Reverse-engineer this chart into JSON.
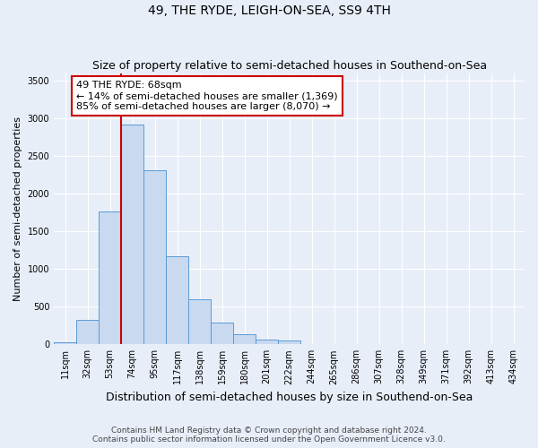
{
  "title": "49, THE RYDE, LEIGH-ON-SEA, SS9 4TH",
  "subtitle": "Size of property relative to semi-detached houses in Southend-on-Sea",
  "xlabel": "Distribution of semi-detached houses by size in Southend-on-Sea",
  "ylabel": "Number of semi-detached properties",
  "bin_labels": [
    "11sqm",
    "32sqm",
    "53sqm",
    "74sqm",
    "95sqm",
    "117sqm",
    "138sqm",
    "159sqm",
    "180sqm",
    "201sqm",
    "222sqm",
    "244sqm",
    "265sqm",
    "286sqm",
    "307sqm",
    "328sqm",
    "349sqm",
    "371sqm",
    "392sqm",
    "413sqm",
    "434sqm"
  ],
  "bar_heights": [
    30,
    320,
    1770,
    2920,
    2310,
    1170,
    600,
    290,
    140,
    60,
    50,
    0,
    0,
    0,
    0,
    0,
    0,
    0,
    0,
    0,
    0
  ],
  "bar_color": "#c9d9f0",
  "bar_edge_color": "#5b9bd5",
  "vline_color": "#cc0000",
  "annotation_text": "49 THE RYDE: 68sqm\n← 14% of semi-detached houses are smaller (1,369)\n85% of semi-detached houses are larger (8,070) →",
  "annotation_box_color": "#ffffff",
  "annotation_box_edge": "#cc0000",
  "ylim": [
    0,
    3600
  ],
  "yticks": [
    0,
    500,
    1000,
    1500,
    2000,
    2500,
    3000,
    3500
  ],
  "footer_line1": "Contains HM Land Registry data © Crown copyright and database right 2024.",
  "footer_line2": "Contains public sector information licensed under the Open Government Licence v3.0.",
  "bg_color": "#e8eef8",
  "grid_color": "#ffffff",
  "title_fontsize": 10,
  "subtitle_fontsize": 9,
  "tick_fontsize": 7,
  "ylabel_fontsize": 8,
  "xlabel_fontsize": 9,
  "footer_fontsize": 6.5,
  "annotation_fontsize": 8,
  "property_sqm": 68
}
